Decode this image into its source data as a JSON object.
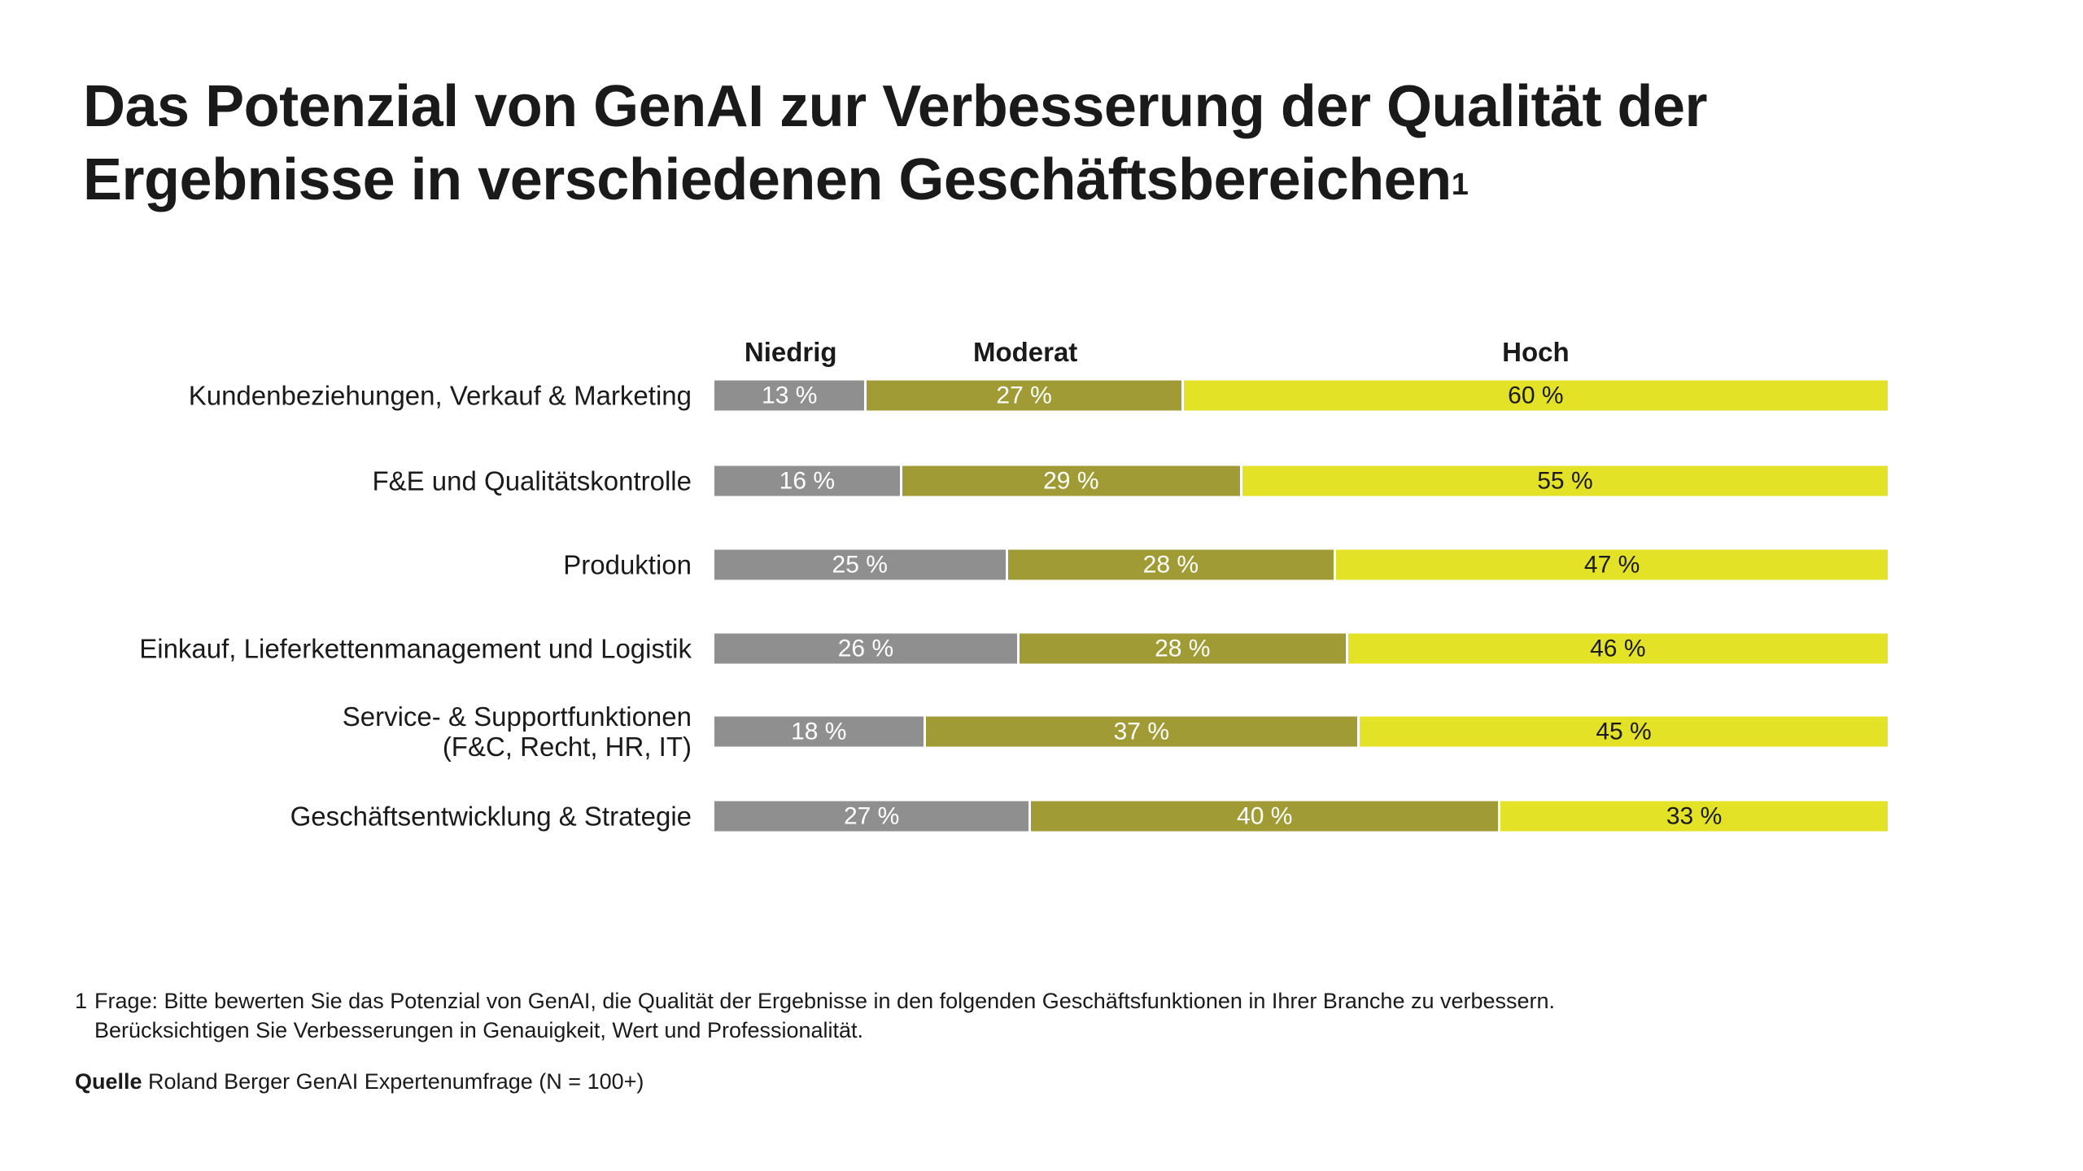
{
  "title": "Das Potenzial von GenAI zur Verbesserung der Qualität der Ergebnisse in verschiedenen Geschäftsbereichen",
  "title_footnote_marker": "1",
  "chart_data": {
    "type": "bar",
    "orientation": "horizontal",
    "stacked": "100%",
    "categories": [
      "Kundenbeziehungen, Verkauf & Marketing",
      "F&E und Qualitätskontrolle",
      "Produktion",
      "Einkauf, Lieferkettenmanagement und Logistik",
      "Service- & Supportfunktionen\n(F&C, Recht, HR, IT)",
      "Geschäftsentwicklung & Strategie"
    ],
    "series": [
      {
        "name": "Niedrig",
        "color": "#8f8f8f",
        "values": [
          13,
          16,
          25,
          26,
          18,
          27
        ]
      },
      {
        "name": "Moderat",
        "color": "#a09b34",
        "values": [
          27,
          29,
          28,
          28,
          37,
          40
        ]
      },
      {
        "name": "Hoch",
        "color": "#e3e226",
        "values": [
          60,
          55,
          47,
          46,
          45,
          33
        ]
      }
    ],
    "value_suffix": "%",
    "grid": false,
    "legend": "top"
  },
  "footnote": {
    "number": "1",
    "line1": "Frage: Bitte bewerten Sie das Potenzial von GenAI, die Qualität der Ergebnisse in den folgenden Geschäftsfunktionen in Ihrer Branche zu verbessern.",
    "line2": "Berücksichtigen Sie Verbesserungen in Genauigkeit, Wert und Professionalität."
  },
  "source": {
    "label": "Quelle",
    "text": "Roland Berger GenAI Expertenumfrage (N = 100+)"
  }
}
